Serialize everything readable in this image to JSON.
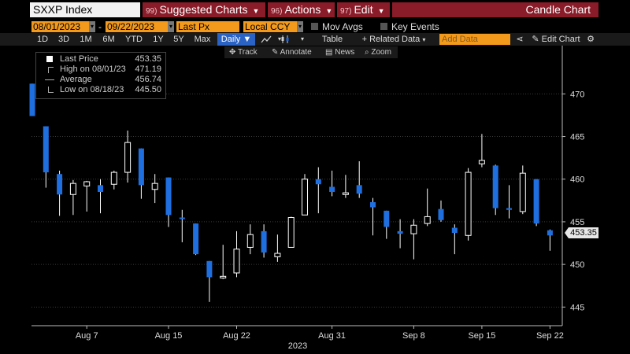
{
  "header": {
    "ticker": "SXXP Index",
    "buttons": [
      {
        "num": "99)",
        "label": "Suggested Charts"
      },
      {
        "num": "96)",
        "label": "Actions"
      },
      {
        "num": "97)",
        "label": "Edit"
      }
    ],
    "chart_title": "Candle Chart"
  },
  "controls": {
    "start_date": "08/01/2023",
    "end_date": "09/22/2023",
    "date_sep": "-",
    "field": "Last Px",
    "currency": "Local CCY",
    "mov_avgs": "Mov Avgs",
    "key_events": "Key Events"
  },
  "toolbar": {
    "periods": [
      "1D",
      "3D",
      "1M",
      "6M",
      "YTD",
      "1Y",
      "5Y",
      "Max"
    ],
    "frequency": "Daily",
    "table": "Table",
    "related_data": "+ Related Data",
    "add_data_placeholder": "Add Data",
    "edit_chart": "Edit Chart"
  },
  "subtoolbar": {
    "track": "Track",
    "annotate": "Annotate",
    "news": "News",
    "zoom": "Zoom"
  },
  "legend": {
    "rows": [
      {
        "label": "Last Price",
        "value": "453.35"
      },
      {
        "label": "High on 08/01/23",
        "value": "471.19"
      },
      {
        "label": "Average",
        "value": "456.74"
      },
      {
        "label": "Low on 08/18/23",
        "value": "445.50"
      }
    ]
  },
  "price_tag": "453.35",
  "colors": {
    "down": "#1f6fe0",
    "up": "#ffffff",
    "accent_orange": "#f39a1c",
    "accent_red": "#8a1b28"
  },
  "chart_data": {
    "type": "candlestick",
    "title": "",
    "xlabel": "2023",
    "ylabel": "",
    "ylim": [
      443,
      474
    ],
    "yticks": [
      445,
      450,
      455,
      460,
      465,
      470
    ],
    "x_tick_labels": [
      {
        "label": "Aug 7",
        "index": 4
      },
      {
        "label": "Aug 15",
        "index": 10
      },
      {
        "label": "Aug 22",
        "index": 15
      },
      {
        "label": "Aug 31",
        "index": 22
      },
      {
        "label": "Sep 8",
        "index": 28
      },
      {
        "label": "Sep 15",
        "index": 33
      },
      {
        "label": "Sep 22",
        "index": 38
      }
    ],
    "x_year_label": "2023",
    "candles": [
      {
        "o": 471.2,
        "h": 471.2,
        "l": 467.4,
        "c": 467.4
      },
      {
        "o": 466.2,
        "h": 466.2,
        "l": 459.0,
        "c": 460.8
      },
      {
        "o": 460.6,
        "h": 461.0,
        "l": 455.7,
        "c": 458.2
      },
      {
        "o": 458.2,
        "h": 459.9,
        "l": 455.8,
        "c": 459.5
      },
      {
        "o": 459.2,
        "h": 459.8,
        "l": 456.2,
        "c": 459.7
      },
      {
        "o": 459.3,
        "h": 460.0,
        "l": 456.0,
        "c": 458.5
      },
      {
        "o": 459.4,
        "h": 461.0,
        "l": 458.8,
        "c": 460.8
      },
      {
        "o": 460.8,
        "h": 465.7,
        "l": 459.6,
        "c": 464.3
      },
      {
        "o": 463.6,
        "h": 463.6,
        "l": 457.7,
        "c": 459.3
      },
      {
        "o": 458.8,
        "h": 460.6,
        "l": 457.2,
        "c": 459.5
      },
      {
        "o": 460.2,
        "h": 460.2,
        "l": 454.4,
        "c": 455.8
      },
      {
        "o": 455.5,
        "h": 456.4,
        "l": 452.6,
        "c": 455.4
      },
      {
        "o": 454.8,
        "h": 454.8,
        "l": 451.1,
        "c": 451.2
      },
      {
        "o": 450.4,
        "h": 450.4,
        "l": 445.6,
        "c": 448.5
      },
      {
        "o": 448.5,
        "h": 452.3,
        "l": 448.3,
        "c": 448.6
      },
      {
        "o": 449.0,
        "h": 453.9,
        "l": 448.5,
        "c": 451.8
      },
      {
        "o": 452.0,
        "h": 454.7,
        "l": 451.2,
        "c": 453.5
      },
      {
        "o": 453.9,
        "h": 454.7,
        "l": 450.8,
        "c": 451.4
      },
      {
        "o": 450.9,
        "h": 453.5,
        "l": 450.3,
        "c": 451.3
      },
      {
        "o": 452.0,
        "h": 455.6,
        "l": 452.0,
        "c": 455.5
      },
      {
        "o": 455.8,
        "h": 460.6,
        "l": 455.8,
        "c": 460.0
      },
      {
        "o": 460.0,
        "h": 461.4,
        "l": 456.0,
        "c": 459.4
      },
      {
        "o": 459.1,
        "h": 461.0,
        "l": 458.0,
        "c": 458.5
      },
      {
        "o": 458.2,
        "h": 460.5,
        "l": 457.8,
        "c": 458.4
      },
      {
        "o": 459.3,
        "h": 462.1,
        "l": 457.8,
        "c": 458.3
      },
      {
        "o": 457.3,
        "h": 457.8,
        "l": 453.4,
        "c": 456.7
      },
      {
        "o": 456.3,
        "h": 456.3,
        "l": 453.0,
        "c": 454.4
      },
      {
        "o": 453.9,
        "h": 455.3,
        "l": 451.9,
        "c": 453.6
      },
      {
        "o": 453.6,
        "h": 455.3,
        "l": 450.6,
        "c": 454.6
      },
      {
        "o": 454.8,
        "h": 458.9,
        "l": 454.5,
        "c": 455.6
      },
      {
        "o": 456.5,
        "h": 457.5,
        "l": 455.0,
        "c": 455.2
      },
      {
        "o": 454.3,
        "h": 454.7,
        "l": 451.2,
        "c": 453.7
      },
      {
        "o": 453.4,
        "h": 461.3,
        "l": 452.8,
        "c": 460.8
      },
      {
        "o": 461.8,
        "h": 465.3,
        "l": 461.4,
        "c": 462.2
      },
      {
        "o": 461.6,
        "h": 461.7,
        "l": 455.8,
        "c": 456.6
      },
      {
        "o": 456.6,
        "h": 459.3,
        "l": 455.4,
        "c": 456.4
      },
      {
        "o": 456.2,
        "h": 461.6,
        "l": 455.9,
        "c": 460.7
      },
      {
        "o": 460.0,
        "h": 460.0,
        "l": 454.5,
        "c": 454.8
      },
      {
        "o": 454.0,
        "h": 454.1,
        "l": 451.6,
        "c": 453.4
      }
    ]
  }
}
